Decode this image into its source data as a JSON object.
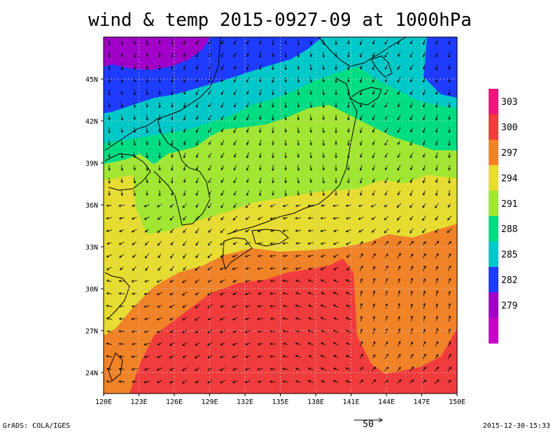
{
  "title": "wind & temp 2015-0927-09 at 1000hPa",
  "footer": {
    "credit": "GrADS: COLA/IGES",
    "timestamp": "2015-12-30-15:33"
  },
  "reference_vector": {
    "value": "50"
  },
  "lat_labels": [
    "45N",
    "42N",
    "39N",
    "36N",
    "33N",
    "30N",
    "27N",
    "24N"
  ],
  "lon_labels": [
    "120E",
    "123E",
    "126E",
    "129E",
    "132E",
    "135E",
    "138E",
    "141E",
    "144E",
    "147E",
    "150E"
  ],
  "colorbar": {
    "labels": [
      "303",
      "300",
      "297",
      "294",
      "291",
      "288",
      "285",
      "282",
      "279"
    ],
    "colors": [
      "#f0147c",
      "#f03c3c",
      "#f08228",
      "#e6dc32",
      "#a0e632",
      "#00dc82",
      "#00c8c8",
      "#1e3cff",
      "#a000c8",
      "#c800c8"
    ]
  },
  "map_colors": {
    "red": "#f03c3c",
    "orange": "#f08228",
    "yellow": "#e6dc32",
    "lightgreen": "#a0e632",
    "green": "#00dc82",
    "cyan": "#00c8c8",
    "blue": "#1e3cff",
    "purple": "#a000c8"
  }
}
